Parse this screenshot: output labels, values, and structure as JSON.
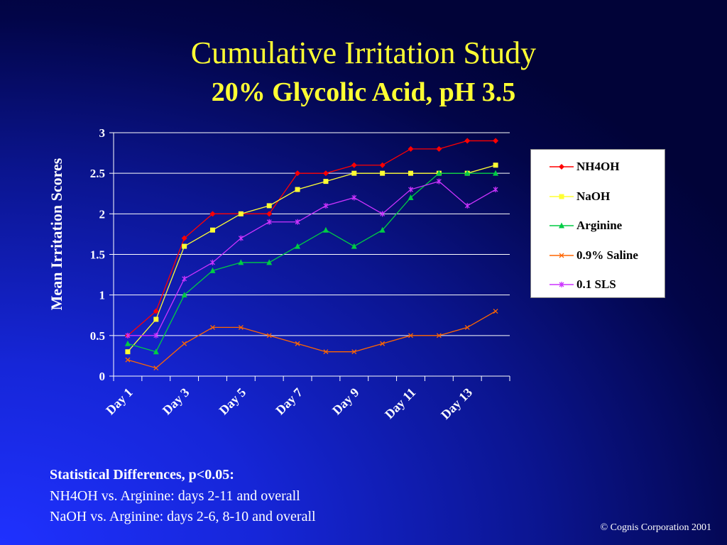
{
  "slide": {
    "title": "Cumulative Irritation Study",
    "subtitle": "20% Glycolic Acid, pH 3.5",
    "notes": {
      "heading": "Statistical Differences, p<0.05:",
      "lines": [
        "NH4OH vs. Arginine:  days 2-11 and overall",
        "NaOH vs. Arginine:  days 2-6, 8-10 and overall"
      ]
    },
    "copyright": "© Cognis Corporation 2001"
  },
  "chart_data": {
    "type": "line",
    "ylabel": "Mean Irritation Scores",
    "ylim": [
      0,
      3
    ],
    "yticks": [
      0,
      0.5,
      1,
      1.5,
      2,
      2.5,
      3
    ],
    "ytick_labels": [
      "0",
      "0.5",
      "1",
      "1.5",
      "2",
      "2.5",
      "3"
    ],
    "x": [
      "Day 1",
      "Day 2",
      "Day 3",
      "Day 4",
      "Day 5",
      "Day 6",
      "Day 7",
      "Day 8",
      "Day 9",
      "Day 10",
      "Day 11",
      "Day 12",
      "Day 13",
      "Day 14"
    ],
    "xtick_labels": [
      "Day 1",
      "",
      "Day 3",
      "",
      "Day 5",
      "",
      "Day 7",
      "",
      "Day 9",
      "",
      "Day 11",
      "",
      "Day 13",
      ""
    ],
    "grid": true,
    "legend_position": "right",
    "series": [
      {
        "name": "NH4OH",
        "color": "#ff0000",
        "marker": "diamond",
        "values": [
          0.5,
          0.8,
          1.7,
          2.0,
          2.0,
          2.0,
          2.5,
          2.5,
          2.6,
          2.6,
          2.8,
          2.8,
          2.9,
          2.9
        ]
      },
      {
        "name": "NaOH",
        "color": "#ffff33",
        "marker": "square",
        "values": [
          0.3,
          0.7,
          1.6,
          1.8,
          2.0,
          2.1,
          2.3,
          2.4,
          2.5,
          2.5,
          2.5,
          2.5,
          2.5,
          2.6
        ]
      },
      {
        "name": "Arginine",
        "color": "#00cc44",
        "marker": "triangle",
        "values": [
          0.4,
          0.3,
          1.0,
          1.3,
          1.4,
          1.4,
          1.6,
          1.8,
          1.6,
          1.8,
          2.2,
          2.5,
          2.5,
          2.5
        ]
      },
      {
        "name": "0.9% Saline",
        "color": "#ff6600",
        "marker": "x",
        "values": [
          0.2,
          0.1,
          0.4,
          0.6,
          0.6,
          0.5,
          0.4,
          0.3,
          0.3,
          0.4,
          0.5,
          0.5,
          0.6,
          0.8
        ]
      },
      {
        "name": "0.1 SLS",
        "color": "#cc33ff",
        "marker": "star",
        "values": [
          0.5,
          0.5,
          1.2,
          1.4,
          1.7,
          1.9,
          1.9,
          2.1,
          2.2,
          2.0,
          2.3,
          2.4,
          2.1,
          2.3
        ]
      }
    ]
  }
}
